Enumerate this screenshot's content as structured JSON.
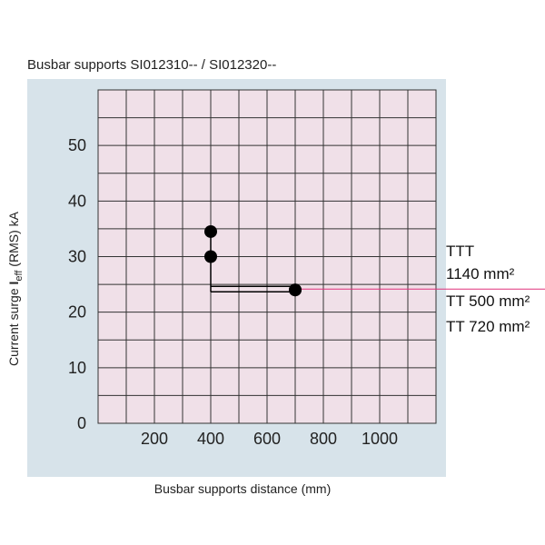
{
  "chart_data": {
    "type": "scatter",
    "title": "Busbar supports SI012310-- / SI012320--",
    "xlabel": "Busbar supports distance (mm)",
    "ylabel": {
      "before": "Current surge ",
      "symbol": "I",
      "subscript": "eff",
      "after": " (RMS) kA"
    },
    "xlim": [
      0,
      1200
    ],
    "ylim": [
      0,
      60
    ],
    "x_grid_step": 100,
    "y_grid_step": 5,
    "x_ticks": [
      200,
      400,
      600,
      800,
      1000
    ],
    "y_ticks": [
      0,
      10,
      20,
      30,
      40,
      50
    ],
    "grid": true,
    "series": [
      {
        "name": "TTT 1140 mm²",
        "points": [
          {
            "x": 400,
            "y": 34.5
          }
        ]
      },
      {
        "name": "TT 500 mm²",
        "points": [
          {
            "x": 400,
            "y": 30
          },
          {
            "x": 700,
            "y": 24
          }
        ]
      },
      {
        "name": "TT 720 mm²",
        "points": [
          {
            "x": 700,
            "y": 24
          }
        ]
      }
    ],
    "legend_labels": [
      {
        "lines": [
          "TTT",
          "1140 mm²"
        ]
      },
      {
        "lines": [
          "TT 500 mm²"
        ]
      },
      {
        "lines": [
          "TT 720 mm²"
        ]
      }
    ],
    "reference_line_y": 24,
    "colors": {
      "panel_bg": "#d7e3ea",
      "plot_bg": "#f0e0e8",
      "grid": "#333333",
      "marker": "#000000",
      "reference_line": "#e0307a"
    }
  }
}
